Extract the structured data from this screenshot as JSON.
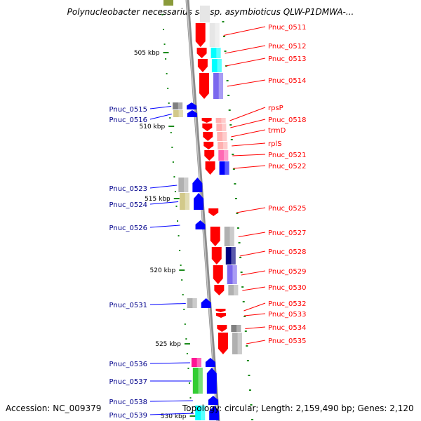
{
  "title": "Polynucleobacter necessarius subsp. asymbioticus QLW-P1DMWA-...",
  "footer": {
    "accession": "Accession: NC_009379",
    "summary": "Topology: circular; Length: 2,159,490 bp; Genes: 2,120"
  },
  "scale_labels": [
    "505 kbp",
    "510 kbp",
    "515 kbp",
    "520 kbp",
    "525 kbp",
    "530 kbp"
  ],
  "colors": {
    "forward": "#ff0000",
    "reverse": "#0000ff",
    "backbone": "#999999",
    "ticks": "#1a8a1a"
  },
  "forward_genes": [
    {
      "label": "Pnuc_0511",
      "cog": "#e6e6e6"
    },
    {
      "label": "Pnuc_0512",
      "cog": "#00ffff"
    },
    {
      "label": "Pnuc_0513",
      "cog": "#00ffff"
    },
    {
      "label": "Pnuc_0514",
      "cog": "#7b68ee"
    },
    {
      "label": "rpsP",
      "cog": "#ffb0b0"
    },
    {
      "label": "Pnuc_0518",
      "cog": "#ffb0b0"
    },
    {
      "label": "trmD",
      "cog": "#ffb0b0"
    },
    {
      "label": "rplS",
      "cog": "#ffb0b0"
    },
    {
      "label": "Pnuc_0521",
      "cog": "#ff69b4"
    },
    {
      "label": "Pnuc_0522",
      "cog": "#0000ff"
    },
    {
      "label": "Pnuc_0525",
      "cog": ""
    },
    {
      "label": "Pnuc_0527",
      "cog": "#b0b0b0"
    },
    {
      "label": "Pnuc_0528",
      "cog": "#000080"
    },
    {
      "label": "Pnuc_0529",
      "cog": "#7b68ee"
    },
    {
      "label": "Pnuc_0530",
      "cog": "#b0b0b0"
    },
    {
      "label": "Pnuc_0532",
      "cog": ""
    },
    {
      "label": "Pnuc_0533",
      "cog": ""
    },
    {
      "label": "Pnuc_0534",
      "cog": "#808080"
    },
    {
      "label": "Pnuc_0535",
      "cog": "#b0b0b0"
    }
  ],
  "reverse_genes": [
    {
      "label": "Pnuc_0515",
      "cog": "#808080"
    },
    {
      "label": "Pnuc_0516",
      "cog": "#d2c98a"
    },
    {
      "label": "Pnuc_0523",
      "cog": "#b0b0b0"
    },
    {
      "label": "Pnuc_0524",
      "cog": "#d2c98a"
    },
    {
      "label": "Pnuc_0526",
      "cog": ""
    },
    {
      "label": "Pnuc_0531",
      "cog": "#b0b0b0"
    },
    {
      "label": "Pnuc_0536",
      "cog": "#ff1493"
    },
    {
      "label": "Pnuc_0537",
      "cog": "#32cd32"
    },
    {
      "label": "Pnuc_0538",
      "cog": ""
    },
    {
      "label": "Pnuc_0539",
      "cog": "#00ffff"
    }
  ]
}
